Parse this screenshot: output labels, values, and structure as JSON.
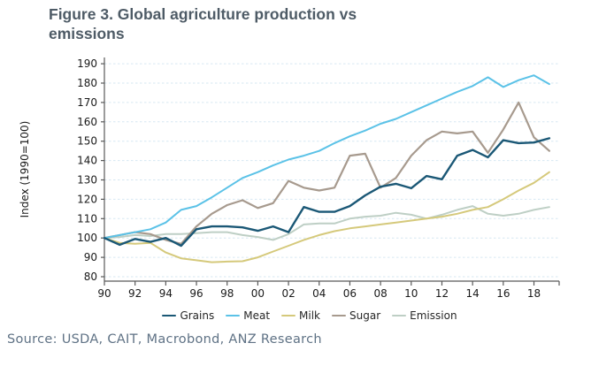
{
  "title": "Figure 3. Global agriculture production vs emissions",
  "source": "Source: USDA, CAIT, Macrobond, ANZ Research",
  "colors": {
    "title_text": "#4e5b66",
    "source_text": "#5f7285",
    "legend_text": "#262626",
    "tick_text": "#1a1a1a",
    "axis": "#595959",
    "grid": "#d6e7f2",
    "background": "#ffffff"
  },
  "chart_data": {
    "type": "line",
    "title": "Figure 3. Global agriculture production vs emissions",
    "ylabel": "Index (1990=100)",
    "xlabel": "",
    "ylim": [
      80,
      190
    ],
    "ytick_step": 10,
    "yticks": [
      80,
      90,
      100,
      110,
      120,
      130,
      140,
      150,
      160,
      170,
      180,
      190
    ],
    "grid": "horizontal-dashed",
    "legend_position": "bottom",
    "x": [
      1990,
      1991,
      1992,
      1993,
      1994,
      1995,
      1996,
      1997,
      1998,
      1999,
      2000,
      2001,
      2002,
      2003,
      2004,
      2005,
      2006,
      2007,
      2008,
      2009,
      2010,
      2011,
      2012,
      2013,
      2014,
      2015,
      2016,
      2017,
      2018,
      2019
    ],
    "x_tick_years": [
      1990,
      1992,
      1994,
      1996,
      1998,
      2000,
      2002,
      2004,
      2006,
      2008,
      2010,
      2012,
      2014,
      2016,
      2018
    ],
    "x_ticklabels": [
      "90",
      "92",
      "94",
      "96",
      "98",
      "00",
      "02",
      "04",
      "06",
      "08",
      "10",
      "12",
      "14",
      "16",
      "18"
    ],
    "series": [
      {
        "name": "Grains",
        "color": "#1b5876",
        "width": 2.4,
        "values": [
          100,
          96.5,
          99.5,
          98,
          100,
          96,
          104.5,
          106,
          106,
          105.5,
          103.7,
          106,
          103,
          116,
          113.5,
          113.5,
          116.5,
          122,
          126.5,
          128,
          125.7,
          132,
          130.3,
          142.5,
          145.5,
          141.7,
          150.5,
          149,
          149.3,
          151.5
        ]
      },
      {
        "name": "Meat",
        "color": "#5bc2e7",
        "width": 2,
        "values": [
          100,
          101.5,
          103,
          104.5,
          108,
          114.5,
          116.5,
          121,
          126,
          131,
          134,
          137.5,
          140.5,
          142.5,
          145,
          149,
          152.5,
          155.5,
          159,
          161.5,
          165,
          168.5,
          172,
          175.5,
          178.5,
          183,
          178,
          181.5,
          184,
          179.5
        ]
      },
      {
        "name": "Milk",
        "color": "#d5c97b",
        "width": 2,
        "values": [
          100,
          97.5,
          97,
          97.5,
          92.5,
          89.5,
          88.5,
          87.5,
          87.8,
          88,
          90,
          93,
          96,
          99,
          101.5,
          103.5,
          105,
          106,
          107,
          108,
          109,
          110,
          111,
          112.5,
          114.5,
          116,
          120,
          124.5,
          128.5,
          134
        ]
      },
      {
        "name": "Sugar",
        "color": "#a79a8e",
        "width": 2.2,
        "values": [
          100,
          101.5,
          103,
          102,
          99,
          97,
          106,
          112.5,
          117,
          119.5,
          115.5,
          118,
          129.5,
          126,
          124.5,
          126,
          142.5,
          143.5,
          126,
          131,
          142.5,
          150.5,
          155,
          154,
          155,
          144,
          156,
          170,
          152,
          145
        ]
      },
      {
        "name": "Emission",
        "color": "#becfc5",
        "width": 2,
        "values": [
          100,
          100.5,
          101.5,
          101,
          102,
          102,
          102.5,
          103,
          103,
          101.5,
          100.5,
          99,
          102,
          107,
          107.5,
          107.5,
          110,
          111,
          111.5,
          113,
          112,
          110,
          112,
          114.5,
          116.5,
          112.5,
          111.5,
          112.5,
          114.5,
          116
        ]
      }
    ]
  }
}
